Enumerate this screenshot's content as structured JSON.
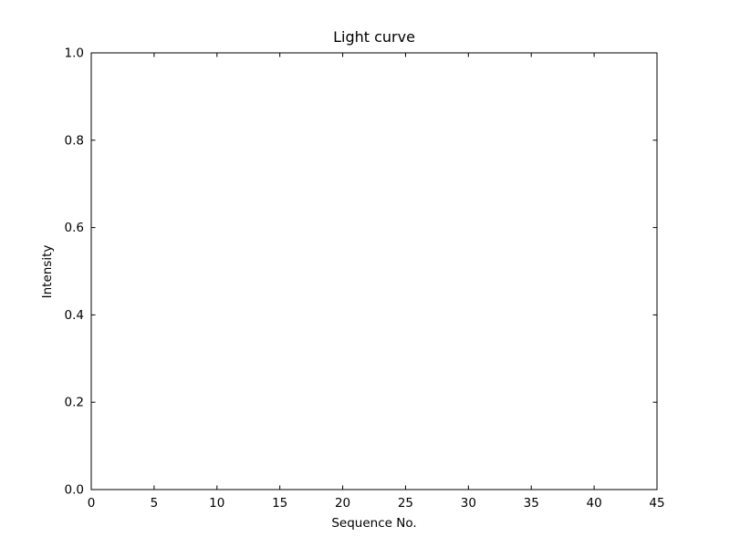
{
  "figure": {
    "background": "#ffffff"
  },
  "chart_data": {
    "type": "line",
    "title": "Light curve",
    "xlabel": "Sequence No.",
    "ylabel": "Intensity",
    "xlim": [
      0,
      45
    ],
    "ylim": [
      0.0,
      1.0
    ],
    "xticks": [
      0,
      5,
      10,
      15,
      20,
      25,
      30,
      35,
      40,
      45
    ],
    "xtick_labels": [
      "0",
      "5",
      "10",
      "15",
      "20",
      "25",
      "30",
      "35",
      "40",
      "45"
    ],
    "yticks": [
      0.0,
      0.2,
      0.4,
      0.6,
      0.8,
      1.0
    ],
    "ytick_labels": [
      "0.0",
      "0.2",
      "0.4",
      "0.6",
      "0.8",
      "1.0"
    ],
    "series": [],
    "grid": false,
    "tick_direction": "in",
    "ticks_on_all_sides": true,
    "axis_color": "#000000",
    "text_color": "#000000"
  }
}
